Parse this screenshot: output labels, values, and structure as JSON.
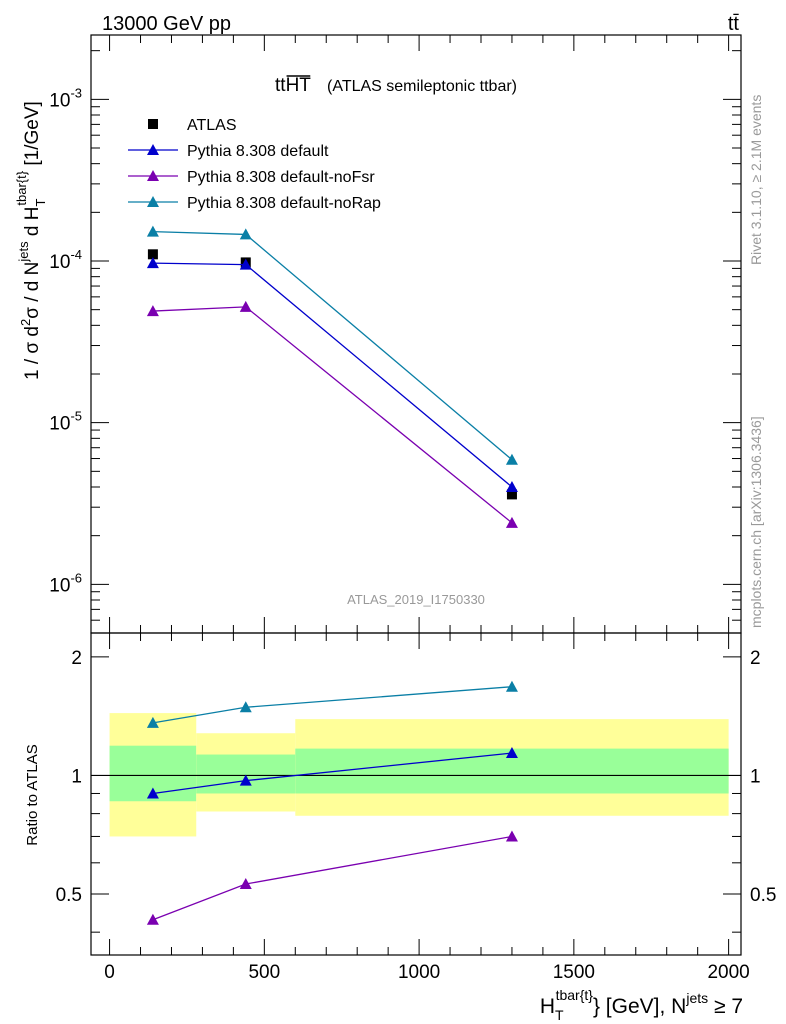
{
  "header": {
    "energy_label": "13000 GeV pp",
    "process_label": "tt̄"
  },
  "side_labels": {
    "rivet": "Rivet 3.1.10, ≥ 2.1M events",
    "mcplots": "mcplots.cern.ch [arXiv:1306.3436]"
  },
  "watermark": "ATLAS_2019_I1750330",
  "chart_data": [
    {
      "type": "scatter",
      "panel": "main",
      "title_main": "tt",
      "title_overline": "HT",
      "subtitle": "(ATLAS semileptonic ttbar)",
      "ylabel": "1 / σ d²σ / d N^jets d H_T^tbar{t} [1/GeV]",
      "yscale": "log",
      "ylim": [
        5e-07,
        0.0025
      ],
      "xlim": [
        -60,
        2040
      ],
      "ytick_labels": [
        "10^-6",
        "10^-5",
        "10^-4",
        "10^-3"
      ],
      "ytick_values": [
        1e-06,
        1e-05,
        0.0001,
        0.001
      ],
      "legend_position": "top-left",
      "series": [
        {
          "name": "ATLAS",
          "marker": "square",
          "color": "#000000",
          "connected": false,
          "x": [
            140,
            440,
            1300
          ],
          "y": [
            0.00011,
            9.8e-05,
            3.6e-06
          ]
        },
        {
          "name": "Pythia 8.308 default",
          "marker": "triangle",
          "color": "#0000cc",
          "connected": true,
          "x": [
            140,
            440,
            1300
          ],
          "y": [
            9.7e-05,
            9.5e-05,
            4e-06
          ]
        },
        {
          "name": "Pythia 8.308 default-noFsr",
          "marker": "triangle",
          "color": "#7a00b0",
          "connected": true,
          "x": [
            140,
            440,
            1300
          ],
          "y": [
            4.9e-05,
            5.2e-05,
            2.4e-06
          ]
        },
        {
          "name": "Pythia 8.308 default-noRap",
          "marker": "triangle",
          "color": "#0a7fa6",
          "connected": true,
          "x": [
            140,
            440,
            1300
          ],
          "y": [
            0.000152,
            0.000146,
            5.9e-06
          ]
        }
      ]
    },
    {
      "type": "scatter",
      "panel": "ratio",
      "ylabel": "Ratio to ATLAS",
      "xlabel": "H_T^tbar{t} [GeV], N^jets ≥ 7",
      "ylim": [
        0.35,
        2.3
      ],
      "xlim": [
        -60,
        2040
      ],
      "xtick_values": [
        0,
        500,
        1000,
        1500,
        2000
      ],
      "xtick_labels": [
        "0",
        "500",
        "1000",
        "1500",
        "2000"
      ],
      "ytick_values": [
        0.5,
        1,
        2
      ],
      "ytick_labels": [
        "0.5",
        "1",
        "2"
      ],
      "bands": [
        {
          "x0": 0,
          "x1": 280,
          "total_lo": 0.7,
          "total_hi": 1.44,
          "stat_lo": 0.86,
          "stat_hi": 1.19
        },
        {
          "x0": 280,
          "x1": 600,
          "total_lo": 0.81,
          "total_hi": 1.28,
          "stat_lo": 0.9,
          "stat_hi": 1.13
        },
        {
          "x0": 600,
          "x1": 2000,
          "total_lo": 0.79,
          "total_hi": 1.39,
          "stat_lo": 0.9,
          "stat_hi": 1.17
        }
      ],
      "series": [
        {
          "name": "Pythia 8.308 default",
          "color": "#0000cc",
          "x": [
            140,
            440,
            1300
          ],
          "y": [
            0.9,
            0.97,
            1.14
          ]
        },
        {
          "name": "Pythia 8.308 default-noFsr",
          "color": "#7a00b0",
          "x": [
            140,
            440,
            1300
          ],
          "y": [
            0.43,
            0.53,
            0.7
          ]
        },
        {
          "name": "Pythia 8.308 default-noRap",
          "color": "#0a7fa6",
          "x": [
            140,
            440,
            1300
          ],
          "y": [
            1.36,
            1.49,
            1.68
          ]
        }
      ]
    }
  ]
}
